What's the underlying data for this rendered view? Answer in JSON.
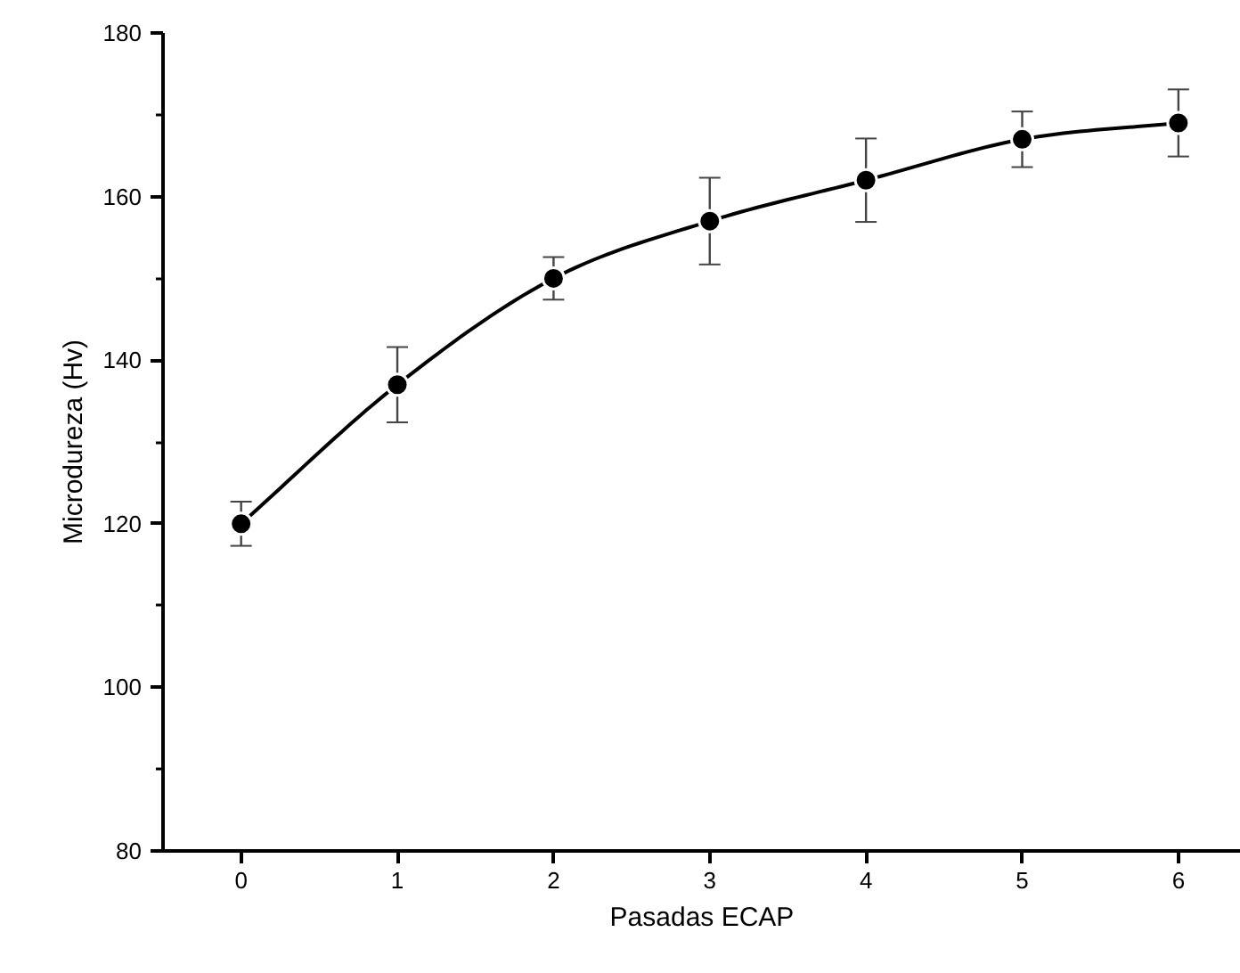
{
  "chart_data": {
    "type": "line",
    "xlabel": "Pasadas ECAP",
    "ylabel": "Microdureza (Hv)",
    "x": [
      0,
      1,
      2,
      3,
      4,
      5,
      6
    ],
    "series": [
      {
        "color": "#000000",
        "values": [
          120,
          137,
          150,
          157,
          162,
          167,
          169
        ],
        "errors": [
          2.7,
          4.6,
          2.6,
          5.3,
          5.1,
          3.4,
          4.1
        ]
      }
    ],
    "marker": "circle",
    "line_style": "solid",
    "xlim": [
      -0.5,
      6.4
    ],
    "xticks": [
      0,
      1,
      2,
      3,
      4,
      5,
      6
    ],
    "ylim": [
      80,
      180
    ],
    "yticks": [
      80,
      {
        "value": 90,
        "label": null
      },
      100,
      {
        "value": 110,
        "label": null
      },
      120,
      {
        "value": 130,
        "label": null
      },
      140,
      {
        "value": 150,
        "label": null
      },
      160,
      {
        "value": 170,
        "label": null
      },
      180
    ]
  }
}
